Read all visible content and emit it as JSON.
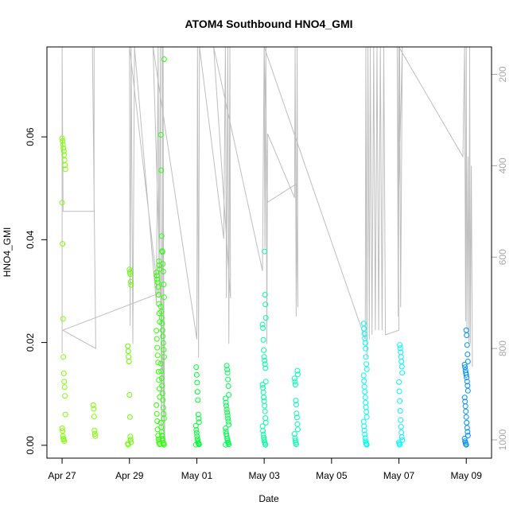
{
  "chart_data": {
    "type": "scatter",
    "title": "ATOM4 Southbound HNO4_GMI",
    "xlabel": "Date",
    "ylabel": "HNO4_GMI",
    "x_tick_labels": [
      "Apr 27",
      "Apr 29",
      "May 01",
      "May 03",
      "May 05",
      "May 07",
      "May 09"
    ],
    "y_tick_labels": [
      "0.00",
      "0.02",
      "0.04",
      "0.06"
    ],
    "y2_tick_labels": [
      "200",
      "400",
      "600",
      "800",
      "1000"
    ],
    "x_ticks_day": [
      0,
      2,
      4,
      6,
      8,
      10,
      12
    ],
    "y_ticks": [
      0,
      0.02,
      0.04,
      0.06
    ],
    "y2_ticks": [
      200,
      400,
      600,
      800,
      1000
    ],
    "xlim_day": [
      -0.45,
      12.75
    ],
    "ylim": [
      -0.0025,
      0.0775
    ],
    "y2lim": [
      1040,
      140
    ],
    "y2_reversed": true,
    "grid": false,
    "point_colors": {
      "early": "#7fff00",
      "mid": "#00ff40",
      "late": "#00ffd0",
      "end": "#0090ff"
    },
    "profile_line_color": "#bebebe",
    "point_clusters": [
      {
        "day": 0.05,
        "color": "#7fff00",
        "values": [
          0.0597,
          0.0592,
          0.0585,
          0.0578,
          0.0572,
          0.0565,
          0.0555,
          0.0545,
          0.0537,
          0.0472,
          0.0392,
          0.0246,
          0.0172,
          0.014,
          0.0124,
          0.0113,
          0.0096,
          0.006,
          0.0033,
          0.0028,
          0.0018,
          0.0013,
          0.0011,
          0.0008
        ]
      },
      {
        "day": 0.95,
        "color": "#7fff00",
        "values": [
          0.0078,
          0.0071,
          0.0056,
          0.0029,
          0.0022,
          0.0018
        ]
      },
      {
        "day": 2.0,
        "color": "#66ff00",
        "values": [
          0.0342,
          0.0337,
          0.0333,
          0.0318,
          0.0312,
          0.0193,
          0.0183,
          0.0172,
          0.0163,
          0.0098,
          0.0055,
          0.0017,
          0.0011,
          0.0006,
          0.0003,
          0.0001
        ]
      },
      {
        "day": 2.85,
        "color": "#33ff00",
        "values": [
          0.0358,
          0.035,
          0.0343,
          0.0336,
          0.033,
          0.0323,
          0.0317,
          0.0308,
          0.0293,
          0.0275,
          0.0257,
          0.024,
          0.0223,
          0.0207,
          0.019,
          0.0175,
          0.0161,
          0.0143,
          0.0127,
          0.011,
          0.0094,
          0.0078,
          0.0061,
          0.0047,
          0.0031,
          0.0019,
          0.0012,
          0.0007,
          0.0004,
          0.0002
        ]
      },
      {
        "day": 2.98,
        "color": "#2cff10",
        "values": [
          0.0751,
          0.0604,
          0.0535,
          0.0407,
          0.0378,
          0.0376,
          0.0353,
          0.0338,
          0.0313,
          0.0288,
          0.027,
          0.026,
          0.0248,
          0.0237,
          0.0224,
          0.0212,
          0.0199,
          0.0186,
          0.0172,
          0.0159,
          0.0144,
          0.013,
          0.0116,
          0.0101,
          0.0088,
          0.0073,
          0.0061,
          0.0052,
          0.0044,
          0.0035,
          0.0026,
          0.0019,
          0.0013,
          0.0009,
          0.0005,
          0.0003,
          0.0001
        ]
      },
      {
        "day": 4.02,
        "color": "#00ff33",
        "values": [
          0.0152,
          0.0137,
          0.0122,
          0.0104,
          0.0088,
          0.006,
          0.0052,
          0.0045,
          0.0038,
          0.003,
          0.0024,
          0.0018,
          0.0012,
          0.0008,
          0.0005,
          0.0003,
          0.0002,
          0.0001
        ]
      },
      {
        "day": 4.9,
        "color": "#00ff50",
        "values": [
          0.0155,
          0.0147,
          0.0141,
          0.0128,
          0.0115,
          0.0098,
          0.0091,
          0.0083,
          0.0077,
          0.007,
          0.0064,
          0.0058,
          0.0052,
          0.0046,
          0.004,
          0.0033,
          0.0027,
          0.0022,
          0.0018,
          0.0013,
          0.0009,
          0.0006,
          0.0004,
          0.0002,
          0.0001
        ]
      },
      {
        "day": 6.0,
        "color": "#00ffa0",
        "values": [
          0.0377,
          0.0293,
          0.0274,
          0.0248,
          0.0235,
          0.0228,
          0.0205,
          0.0185,
          0.0172,
          0.0165,
          0.0158,
          0.015,
          0.0124,
          0.0118,
          0.0112,
          0.0103,
          0.0093,
          0.0086,
          0.0077,
          0.0066,
          0.0053,
          0.0044,
          0.0037,
          0.0028,
          0.0021,
          0.0015,
          0.001,
          0.0006,
          0.0003,
          0.0001
        ]
      },
      {
        "day": 6.95,
        "color": "#00ffb0",
        "values": [
          0.0145,
          0.0138,
          0.013,
          0.0124,
          0.0118,
          0.0087,
          0.0079,
          0.0062,
          0.0054,
          0.0041,
          0.0031,
          0.0022,
          0.0014,
          0.0009,
          0.0005,
          0.0002
        ]
      },
      {
        "day": 9.0,
        "color": "#00ffee",
        "values": [
          0.0237,
          0.0227,
          0.0217,
          0.0208,
          0.0199,
          0.0188,
          0.0172,
          0.0158,
          0.0148,
          0.0136,
          0.0125,
          0.0114,
          0.0104,
          0.0093,
          0.0083,
          0.0074,
          0.0065,
          0.0055,
          0.0046,
          0.0037,
          0.0029,
          0.0021,
          0.0014,
          0.0008,
          0.0004,
          0.0002,
          0.0001
        ]
      },
      {
        "day": 10.05,
        "color": "#00f8ff",
        "values": [
          0.0195,
          0.0189,
          0.0181,
          0.0172,
          0.0163,
          0.0153,
          0.0141,
          0.0123,
          0.0105,
          0.0086,
          0.0067,
          0.0049,
          0.0036,
          0.0025,
          0.0016,
          0.001,
          0.0006,
          0.0003,
          0.0001
        ]
      },
      {
        "day": 12.0,
        "color": "#0090ff",
        "values": [
          0.0224,
          0.0214,
          0.0195,
          0.0177,
          0.0163,
          0.0157,
          0.0152,
          0.0146,
          0.0141,
          0.0137,
          0.0132,
          0.0124,
          0.0116,
          0.0106,
          0.0093,
          0.0085,
          0.0076,
          0.0066,
          0.0055,
          0.0044,
          0.0034,
          0.0026,
          0.0019,
          0.0013,
          0.0008,
          0.0005,
          0.0002,
          0.0001
        ]
      }
    ],
    "pressure_profile": [
      [
        0.0,
        140
      ],
      [
        0.0,
        810
      ],
      [
        0.0,
        140
      ],
      [
        0.03,
        500
      ],
      [
        0.95,
        500
      ],
      [
        0.95,
        140
      ],
      [
        0.9,
        140
      ],
      [
        1.0,
        800
      ],
      [
        0.02,
        760
      ],
      [
        2.85,
        680
      ],
      [
        2.0,
        140
      ],
      [
        2.02,
        750
      ],
      [
        2.05,
        140
      ],
      [
        2.1,
        790
      ],
      [
        2.15,
        140
      ],
      [
        2.8,
        700
      ],
      [
        2.85,
        140
      ],
      [
        2.88,
        690
      ],
      [
        2.92,
        140
      ],
      [
        2.95,
        1010
      ],
      [
        3.0,
        140
      ],
      [
        3.02,
        1000
      ],
      [
        2.97,
        140
      ],
      [
        3.05,
        1000
      ],
      [
        2.7,
        140
      ],
      [
        4.0,
        780
      ],
      [
        4.02,
        140
      ],
      [
        4.05,
        820
      ],
      [
        4.08,
        140
      ],
      [
        4.8,
        560
      ],
      [
        4.85,
        140
      ],
      [
        4.88,
        690
      ],
      [
        4.92,
        140
      ],
      [
        4.95,
        790
      ],
      [
        4.98,
        140
      ],
      [
        5.0,
        690
      ],
      [
        4.5,
        140
      ],
      [
        5.95,
        630
      ],
      [
        6.0,
        140
      ],
      [
        6.02,
        580
      ],
      [
        6.05,
        140
      ],
      [
        6.08,
        790
      ],
      [
        6.1,
        330
      ],
      [
        6.9,
        470
      ],
      [
        6.92,
        140
      ],
      [
        6.95,
        730
      ],
      [
        6.98,
        140
      ],
      [
        7.0,
        710
      ],
      [
        6.95,
        440
      ],
      [
        6.1,
        480
      ],
      [
        6.0,
        140
      ],
      [
        9.0,
        780
      ],
      [
        9.02,
        140
      ],
      [
        9.05,
        820
      ],
      [
        9.08,
        140
      ],
      [
        9.12,
        780
      ],
      [
        9.15,
        140
      ],
      [
        9.2,
        770
      ],
      [
        9.25,
        140
      ],
      [
        9.3,
        760
      ],
      [
        9.35,
        140
      ],
      [
        9.4,
        760
      ],
      [
        9.45,
        140
      ],
      [
        9.5,
        760
      ],
      [
        9.55,
        140
      ],
      [
        9.6,
        770
      ],
      [
        9.6,
        770
      ],
      [
        10.0,
        760
      ],
      [
        9.95,
        140
      ],
      [
        9.98,
        730
      ],
      [
        10.02,
        140
      ],
      [
        10.05,
        710
      ],
      [
        10.1,
        140
      ],
      [
        9.98,
        510
      ],
      [
        10.0,
        140
      ],
      [
        11.9,
        380
      ],
      [
        11.95,
        140
      ],
      [
        11.98,
        740
      ],
      [
        12.0,
        140
      ],
      [
        12.02,
        760
      ],
      [
        12.05,
        380
      ],
      [
        12.08,
        790
      ],
      [
        12.1,
        140
      ],
      [
        12.12,
        790
      ],
      [
        12.15,
        400
      ],
      [
        12.18,
        840
      ]
    ]
  }
}
